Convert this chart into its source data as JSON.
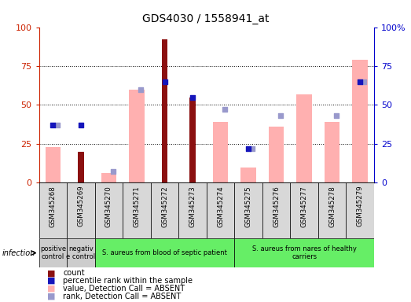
{
  "title": "GDS4030 / 1558941_at",
  "samples": [
    "GSM345268",
    "GSM345269",
    "GSM345270",
    "GSM345271",
    "GSM345272",
    "GSM345273",
    "GSM345274",
    "GSM345275",
    "GSM345276",
    "GSM345277",
    "GSM345278",
    "GSM345279"
  ],
  "count": [
    0,
    20,
    0,
    0,
    92,
    55,
    0,
    0,
    0,
    0,
    0,
    0
  ],
  "percentile_rank": [
    37,
    37,
    0,
    0,
    65,
    55,
    0,
    22,
    0,
    0,
    0,
    65
  ],
  "value_absent": [
    23,
    0,
    6,
    60,
    0,
    0,
    39,
    10,
    36,
    57,
    39,
    79
  ],
  "rank_absent": [
    37,
    0,
    7,
    60,
    0,
    0,
    47,
    22,
    43,
    0,
    43,
    65
  ],
  "groups": [
    {
      "label": "positive\ncontrol",
      "start": 0,
      "end": 1,
      "color": "#cccccc"
    },
    {
      "label": "negativ\ne control",
      "start": 1,
      "end": 2,
      "color": "#cccccc"
    },
    {
      "label": "S. aureus from blood of septic patient",
      "start": 2,
      "end": 7,
      "color": "#66ee66"
    },
    {
      "label": "S. aureus from nares of healthy\ncarriers",
      "start": 7,
      "end": 12,
      "color": "#66ee66"
    }
  ],
  "ylim": [
    0,
    100
  ],
  "grid_lines": [
    25,
    50,
    75
  ],
  "left_axis_color": "#cc2200",
  "right_axis_color": "#0000cc",
  "bar_color_count": "#8b1010",
  "bar_color_absent": "#ffb0b0",
  "square_color_rank": "#1515bb",
  "square_color_rank_absent": "#9999cc",
  "xtick_bg_color": "#d8d8d8",
  "legend_items": [
    {
      "color": "#8b1010",
      "label": "count"
    },
    {
      "color": "#1515bb",
      "label": "percentile rank within the sample"
    },
    {
      "color": "#ffb0b0",
      "label": "value, Detection Call = ABSENT"
    },
    {
      "color": "#9999cc",
      "label": "rank, Detection Call = ABSENT"
    }
  ]
}
